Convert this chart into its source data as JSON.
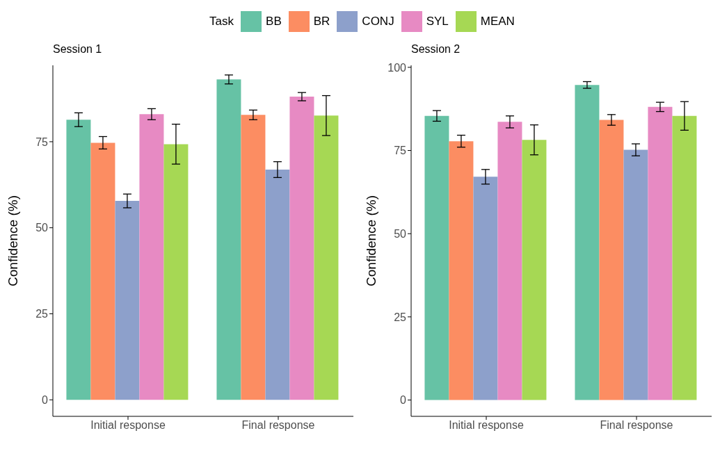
{
  "chart_data": [
    {
      "type": "bar",
      "title": "Session 1",
      "ylabel": "Confidence (%)",
      "legend_title": "Task",
      "legend": "top",
      "grid": false,
      "categories": [
        "Initial response",
        "Final response"
      ],
      "ylim": [
        -4.8,
        97.2
      ],
      "yticks": [
        0,
        25,
        50,
        75
      ],
      "series": [
        {
          "name": "BB",
          "color": "#66c2a5",
          "values": [
            81.4,
            93.1
          ],
          "errors": [
            2,
            1.3
          ]
        },
        {
          "name": "BR",
          "color": "#fc8d62",
          "values": [
            74.7,
            82.8
          ],
          "errors": [
            1.8,
            1.4
          ]
        },
        {
          "name": "CONJ",
          "color": "#8da0cb",
          "values": [
            57.8,
            66.9
          ],
          "errors": [
            2,
            2.3
          ]
        },
        {
          "name": "SYL",
          "color": "#e78ac3",
          "values": [
            83,
            88.1
          ],
          "errors": [
            1.6,
            1.2
          ]
        },
        {
          "name": "MEAN",
          "color": "#a6d854",
          "values": [
            74.3,
            82.6
          ],
          "errors": [
            5.8,
            5.8
          ]
        }
      ]
    },
    {
      "type": "bar",
      "title": "Session 2",
      "ylabel": "Confidence (%)",
      "grid": false,
      "categories": [
        "Initial response",
        "Final response"
      ],
      "ylim": [
        -4.9,
        100.6
      ],
      "yticks": [
        0,
        25,
        50,
        75,
        100
      ],
      "series": [
        {
          "color": "#66c2a5",
          "values": [
            85.4,
            94.7
          ],
          "errors": [
            1.6,
            1
          ]
        },
        {
          "color": "#fc8d62",
          "values": [
            77.8,
            84.2
          ],
          "errors": [
            1.8,
            1.6
          ]
        },
        {
          "color": "#8da0cb",
          "values": [
            67.1,
            75.2
          ],
          "errors": [
            2.2,
            1.8
          ]
        },
        {
          "color": "#e78ac3",
          "values": [
            83.6,
            88.1
          ],
          "errors": [
            1.8,
            1.4
          ]
        },
        {
          "color": "#a6d854",
          "values": [
            78.2,
            85.4
          ],
          "errors": [
            4.5,
            4.3
          ]
        }
      ]
    }
  ]
}
